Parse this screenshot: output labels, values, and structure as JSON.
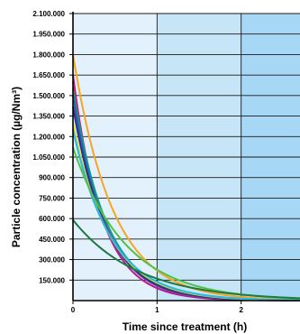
{
  "chart_data": {
    "type": "line",
    "title": "",
    "xlabel": "Time since treatment (h)",
    "ylabel": "Particle concentration (µg/Nm³)",
    "xlim": [
      0,
      2.7
    ],
    "ylim": [
      0,
      2100000
    ],
    "x_ticks": [
      0,
      1,
      2
    ],
    "x_tick_labels": [
      "0",
      "1",
      "2"
    ],
    "y_ticks": [
      150000,
      300000,
      450000,
      600000,
      750000,
      900000,
      1050000,
      1200000,
      1350000,
      1500000,
      1650000,
      1800000,
      1950000,
      2100000
    ],
    "y_tick_labels": [
      "150.000",
      "300.000",
      "450.000",
      "600.000",
      "750.000",
      "900.000",
      "1.050.000",
      "1.200.000",
      "1.350.000",
      "1.500.000",
      "1.650.000",
      "1.800.000",
      "1.950.000",
      "2.100.000"
    ],
    "grid": true,
    "background_bands": [
      {
        "from": 0,
        "to": 1,
        "color": "#e2f1fb"
      },
      {
        "from": 1,
        "to": 2,
        "color": "#c6e5f7"
      },
      {
        "from": 2,
        "to": 2.7,
        "color": "#a6d8f5"
      }
    ],
    "series": [
      {
        "color": "#f5a623",
        "start": 1800000,
        "rate": 2.1
      },
      {
        "color": "#b5179e",
        "start": 1650000,
        "rate": 2.9
      },
      {
        "color": "#d0284f",
        "start": 1600000,
        "rate": 2.7
      },
      {
        "color": "#0f9b8e",
        "start": 1550000,
        "rate": 2.5
      },
      {
        "color": "#2f5dab",
        "start": 1500000,
        "rate": 2.6
      },
      {
        "color": "#2b2f8f",
        "start": 1420000,
        "rate": 2.5
      },
      {
        "color": "#d6e020",
        "start": 1300000,
        "rate": 2.3
      },
      {
        "color": "#29b6e8",
        "start": 1250000,
        "rate": 2.2
      },
      {
        "color": "#52c246",
        "start": 1120000,
        "rate": 1.6
      },
      {
        "color": "#1f7a3f",
        "start": 590000,
        "rate": 1.3
      }
    ]
  }
}
